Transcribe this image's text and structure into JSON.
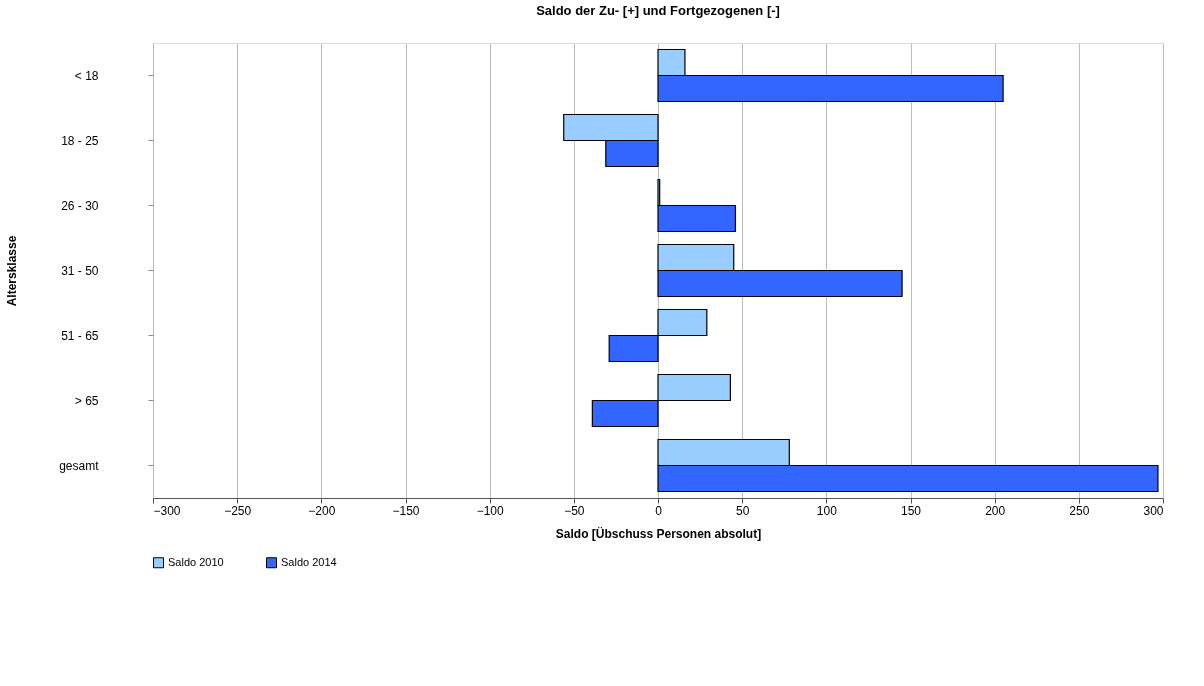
{
  "chart_data": {
    "type": "bar",
    "orientation": "horizontal",
    "title": "Saldo der Zu- [+] und Fortgezogenen [-]",
    "xlabel": "Saldo [Übschuss Personen absolut]",
    "ylabel": "Altersklasse",
    "categories": [
      "< 18",
      "18 - 25",
      "26 - 30",
      "31 - 50",
      "51 - 65",
      "> 65",
      "gesamt"
    ],
    "series": [
      {
        "name": "Saldo 2010",
        "color": "#99ccff",
        "values": [
          16,
          -56,
          1,
          45,
          29,
          43,
          78
        ]
      },
      {
        "name": "Saldo 2014",
        "color": "#3366ff",
        "values": [
          205,
          -31,
          46,
          145,
          -29,
          -39,
          297
        ]
      }
    ],
    "xlim": [
      -300,
      300
    ],
    "xticks": [
      -300,
      -250,
      -200,
      -150,
      -100,
      -50,
      0,
      50,
      100,
      150,
      200,
      250,
      300
    ],
    "grid": "x",
    "legend": "bottom"
  }
}
